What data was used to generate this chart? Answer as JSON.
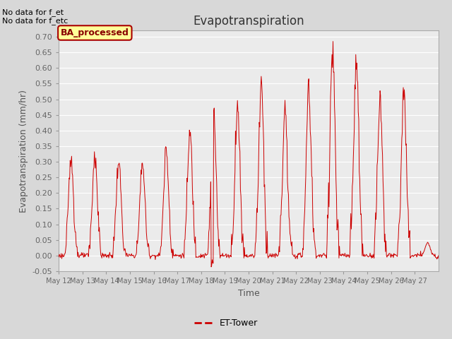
{
  "title": "Evapotranspiration",
  "ylabel": "Evapotranspiration (mm/hr)",
  "xlabel": "Time",
  "text_top_left": "No data for f_et\nNo data for f_etc",
  "legend_box_label": "BA_processed",
  "legend_line_label": "ET-Tower",
  "ylim": [
    -0.05,
    0.72
  ],
  "fig_bg_color": "#d8d8d8",
  "plot_bg_color": "#ebebeb",
  "line_color": "#cc0000",
  "legend_box_bg": "#ffff99",
  "legend_box_edge": "#aa0000",
  "legend_box_text_color": "#880000",
  "grid_color": "#ffffff",
  "title_color": "#333333",
  "label_color": "#555555",
  "tick_color": "#666666",
  "yticks": [
    -0.05,
    0.0,
    0.05,
    0.1,
    0.15,
    0.2,
    0.25,
    0.3,
    0.35,
    0.4,
    0.45,
    0.5,
    0.55,
    0.6,
    0.65,
    0.7
  ],
  "xtick_labels": [
    "May 12",
    "May 13",
    "May 14",
    "May 15",
    "May 16",
    "May 17",
    "May 18",
    "May 19",
    "May 20",
    "May 21",
    "May 22",
    "May 23",
    "May 24",
    "May 25",
    "May 26",
    "May 27"
  ],
  "peak_heights": [
    0.31,
    0.32,
    0.3,
    0.3,
    0.34,
    0.39,
    0.45,
    0.48,
    0.55,
    0.46,
    0.53,
    0.66,
    0.62,
    0.5,
    0.52,
    0.04
  ],
  "num_days": 16
}
